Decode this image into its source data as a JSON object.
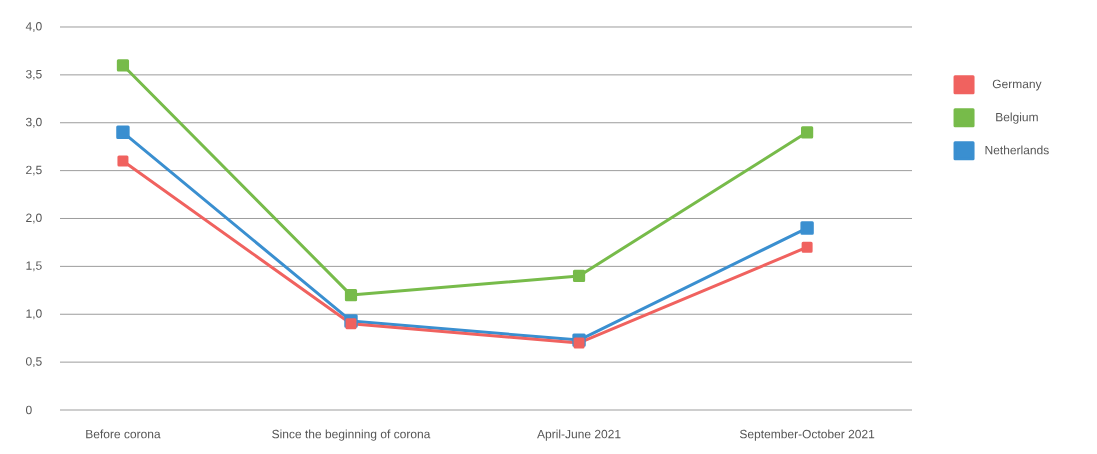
{
  "chart_data": {
    "type": "line",
    "categories": [
      "Before corona",
      "Since the beginning of corona",
      "April-June 2021",
      "September-October 2021"
    ],
    "series": [
      {
        "name": "Germany",
        "color": "#f0625f",
        "values": [
          2.6,
          0.9,
          0.7,
          1.7
        ]
      },
      {
        "name": "Belgium",
        "color": "#77bb4a",
        "values": [
          3.6,
          1.2,
          1.4,
          2.9
        ]
      },
      {
        "name": "Netherlands",
        "color": "#3a8fd0",
        "values": [
          2.9,
          0.93,
          0.73,
          1.9
        ]
      }
    ],
    "ylim": [
      0,
      4
    ],
    "yticks": [
      0,
      {
        "value": 0.5,
        "label": "0,5"
      },
      {
        "value": 1,
        "label": "1,0"
      },
      {
        "value": 1.5,
        "label": "1,5"
      },
      {
        "value": 2,
        "label": "2,0"
      },
      {
        "value": 2.5,
        "label": "2,5"
      },
      {
        "value": 3,
        "label": "3,0"
      },
      {
        "value": 3.5,
        "label": "3,5"
      },
      {
        "value": 4,
        "label": "4,0"
      }
    ],
    "grid": "y",
    "legend": "right",
    "marker": "square",
    "line_style": "solid"
  }
}
